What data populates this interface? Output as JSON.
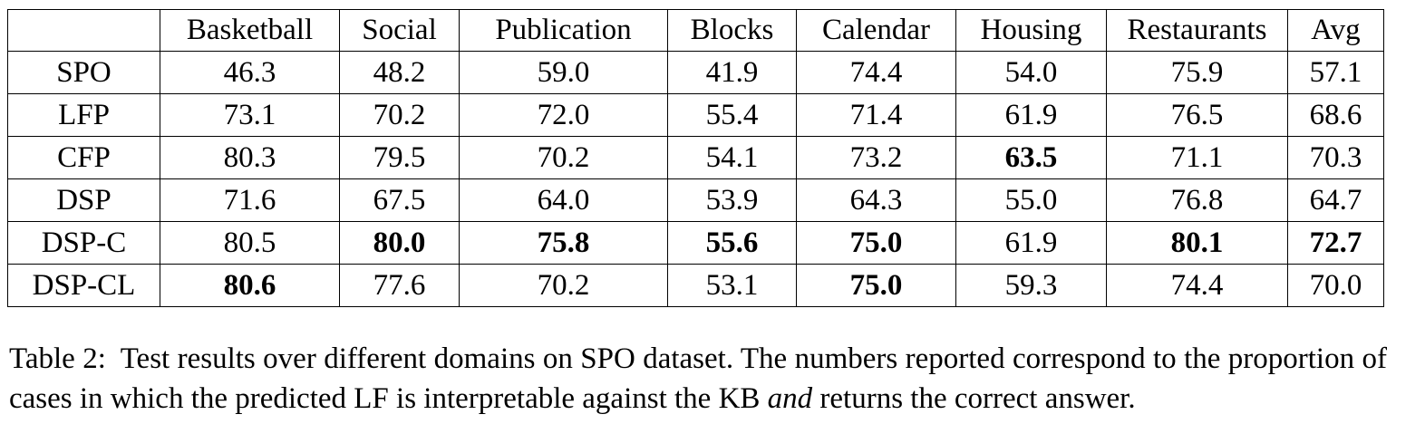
{
  "table": {
    "columns": [
      "",
      "Basketball",
      "Social",
      "Publication",
      "Blocks",
      "Calendar",
      "Housing",
      "Restaurants",
      "Avg"
    ],
    "rows": [
      {
        "method": "SPO",
        "values": [
          "46.3",
          "48.2",
          "59.0",
          "41.9",
          "74.4",
          "54.0",
          "75.9",
          "57.1"
        ],
        "bold": [
          false,
          false,
          false,
          false,
          false,
          false,
          false,
          false
        ]
      },
      {
        "method": "LFP",
        "values": [
          "73.1",
          "70.2",
          "72.0",
          "55.4",
          "71.4",
          "61.9",
          "76.5",
          "68.6"
        ],
        "bold": [
          false,
          false,
          false,
          false,
          false,
          false,
          false,
          false
        ]
      },
      {
        "method": "CFP",
        "values": [
          "80.3",
          "79.5",
          "70.2",
          "54.1",
          "73.2",
          "63.5",
          "71.1",
          "70.3"
        ],
        "bold": [
          false,
          false,
          false,
          false,
          false,
          true,
          false,
          false
        ]
      },
      {
        "method": "DSP",
        "values": [
          "71.6",
          "67.5",
          "64.0",
          "53.9",
          "64.3",
          "55.0",
          "76.8",
          "64.7"
        ],
        "bold": [
          false,
          false,
          false,
          false,
          false,
          false,
          false,
          false
        ]
      },
      {
        "method": "DSP-C",
        "values": [
          "80.5",
          "80.0",
          "75.8",
          "55.6",
          "75.0",
          "61.9",
          "80.1",
          "72.7"
        ],
        "bold": [
          false,
          true,
          true,
          true,
          true,
          false,
          true,
          true
        ]
      },
      {
        "method": "DSP-CL",
        "values": [
          "80.6",
          "77.6",
          "70.2",
          "53.1",
          "75.0",
          "59.3",
          "74.4",
          "70.0"
        ],
        "bold": [
          true,
          false,
          false,
          false,
          true,
          false,
          false,
          false
        ]
      }
    ]
  },
  "caption": {
    "label": "Table 2:",
    "text_part1": "Test results over different domains on SPO dataset. The numbers reported correspond to the proportion of cases in which the predicted LF is interpretable against the KB",
    "emphasis": "and",
    "text_part2": "returns the correct answer."
  }
}
